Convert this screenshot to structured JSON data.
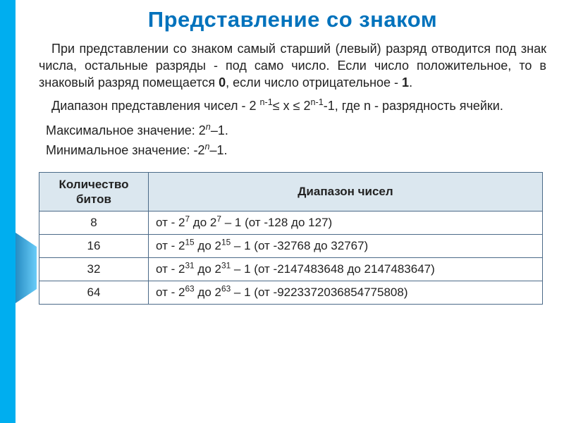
{
  "title": "Представление со знаком",
  "paragraphs": {
    "p1_pre": "При представлении со знаком самый старший (левый) разряд отводится под знак числа, остальные разряды - под само число. Если число положительное, то в знаковый разряд помещается ",
    "p1_b0": "0",
    "p1_mid": ", если число отрицательное - ",
    "p1_b1": "1",
    "p1_end": ".",
    "p2_pre": "Диапазон представления чисел - 2 ",
    "p2_exp1": "n-1",
    "p2_mid1": "≤ x ≤ 2",
    "p2_exp2": "n-1",
    "p2_mid2": "-1, где n - разрядность ячейки."
  },
  "minmax": {
    "max_pre": "Максимальное значение:  2",
    "max_exp": "n",
    "max_post": "–1.",
    "min_pre": "Минимальное значение: -2",
    "min_exp": "n",
    "min_post": "–1."
  },
  "table": {
    "headers": {
      "bits": "Количество битов",
      "range": "Диапазон чисел"
    },
    "rows": [
      {
        "bits": "8",
        "exp": "7",
        "extra": "(от -128 до 127)"
      },
      {
        "bits": "16",
        "exp": "15",
        "extra": "(от -32768 до 32767)"
      },
      {
        "bits": "32",
        "exp": "31",
        "extra": "(от -2147483648 до 2147483647)"
      },
      {
        "bits": "64",
        "exp": "63",
        "extra": "(от -9223372036854775808)"
      }
    ],
    "cell_template": {
      "pre": "от - 2",
      "mid": " до 2",
      "post": " – 1  "
    }
  },
  "colors": {
    "title": "#0072bc",
    "border_left": "#00aeef",
    "table_border": "#4b6a88",
    "header_bg": "#dbe7ef",
    "text": "#222222"
  }
}
